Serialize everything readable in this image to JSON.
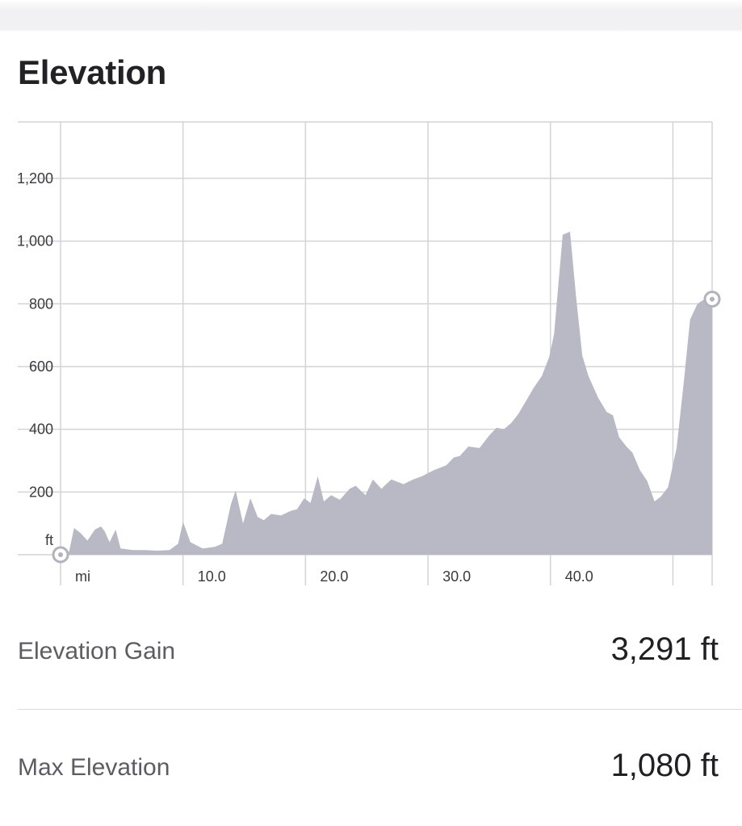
{
  "title": "Elevation",
  "chart_data": {
    "type": "area",
    "title": "",
    "xlabel": "mi",
    "ylabel": "ft",
    "xlim": [
      0,
      53.2
    ],
    "ylim": [
      0,
      1380
    ],
    "grid": true,
    "x_ticks": [
      {
        "value": 10,
        "label": "10.0"
      },
      {
        "value": 20,
        "label": "20.0"
      },
      {
        "value": 30,
        "label": "30.0"
      },
      {
        "value": 40,
        "label": "40.0"
      }
    ],
    "y_ticks": [
      {
        "value": 200,
        "label": "200"
      },
      {
        "value": 400,
        "label": "400"
      },
      {
        "value": 600,
        "label": "600"
      },
      {
        "value": 800,
        "label": "800"
      },
      {
        "value": 1000,
        "label": "1,000"
      },
      {
        "value": 1200,
        "label": "1,200"
      }
    ],
    "fill_color": "#b9b9c5",
    "markers": [
      {
        "name": "start",
        "x": 0,
        "y": 0
      },
      {
        "name": "end",
        "x": 53.2,
        "y": 815
      }
    ],
    "series": [
      {
        "x": [
          0,
          0.7,
          1.1,
          1.6,
          2.2,
          2.8,
          3.3,
          3.6,
          4.0,
          4.5,
          4.9,
          5.9,
          6.9,
          7.9,
          8.9,
          9.6,
          10.0,
          10.6,
          11.6,
          12.6,
          13.2,
          13.9,
          14.3,
          14.9,
          15.5,
          16.1,
          16.6,
          17.2,
          18.0,
          18.8,
          19.3,
          19.9,
          20.4,
          21.0,
          21.5,
          22.1,
          22.8,
          23.6,
          24.1,
          24.9,
          25.5,
          26.2,
          27.0,
          28.0,
          28.8,
          29.5,
          30.5,
          31.5,
          32.1,
          32.6,
          33.3,
          34.2,
          35.0,
          35.6,
          36.2,
          36.8,
          37.4,
          38.0,
          38.6,
          39.3,
          39.9,
          40.3,
          41.0,
          41.6,
          42.1,
          42.6,
          43.1,
          43.9,
          44.6,
          45.1,
          45.6,
          46.2,
          46.7,
          47.3,
          47.9,
          48.5,
          49.0,
          49.6,
          50.3,
          50.9,
          51.4,
          52.0,
          52.6,
          53.2
        ],
        "y": [
          0,
          10,
          85,
          70,
          45,
          80,
          90,
          75,
          40,
          80,
          20,
          15,
          15,
          13,
          15,
          35,
          105,
          40,
          20,
          25,
          35,
          160,
          205,
          100,
          180,
          120,
          110,
          130,
          125,
          140,
          145,
          180,
          165,
          250,
          170,
          190,
          175,
          210,
          220,
          190,
          240,
          210,
          240,
          225,
          240,
          250,
          270,
          285,
          310,
          315,
          345,
          340,
          380,
          405,
          400,
          420,
          450,
          490,
          530,
          570,
          630,
          705,
          1020,
          1030,
          820,
          635,
          570,
          500,
          455,
          445,
          375,
          345,
          325,
          270,
          235,
          170,
          185,
          215,
          340,
          555,
          750,
          800,
          815,
          815
        ]
      }
    ]
  },
  "stats": [
    {
      "label": "Elevation Gain",
      "value": "3,291 ft"
    },
    {
      "label": "Max Elevation",
      "value": "1,080 ft"
    }
  ]
}
